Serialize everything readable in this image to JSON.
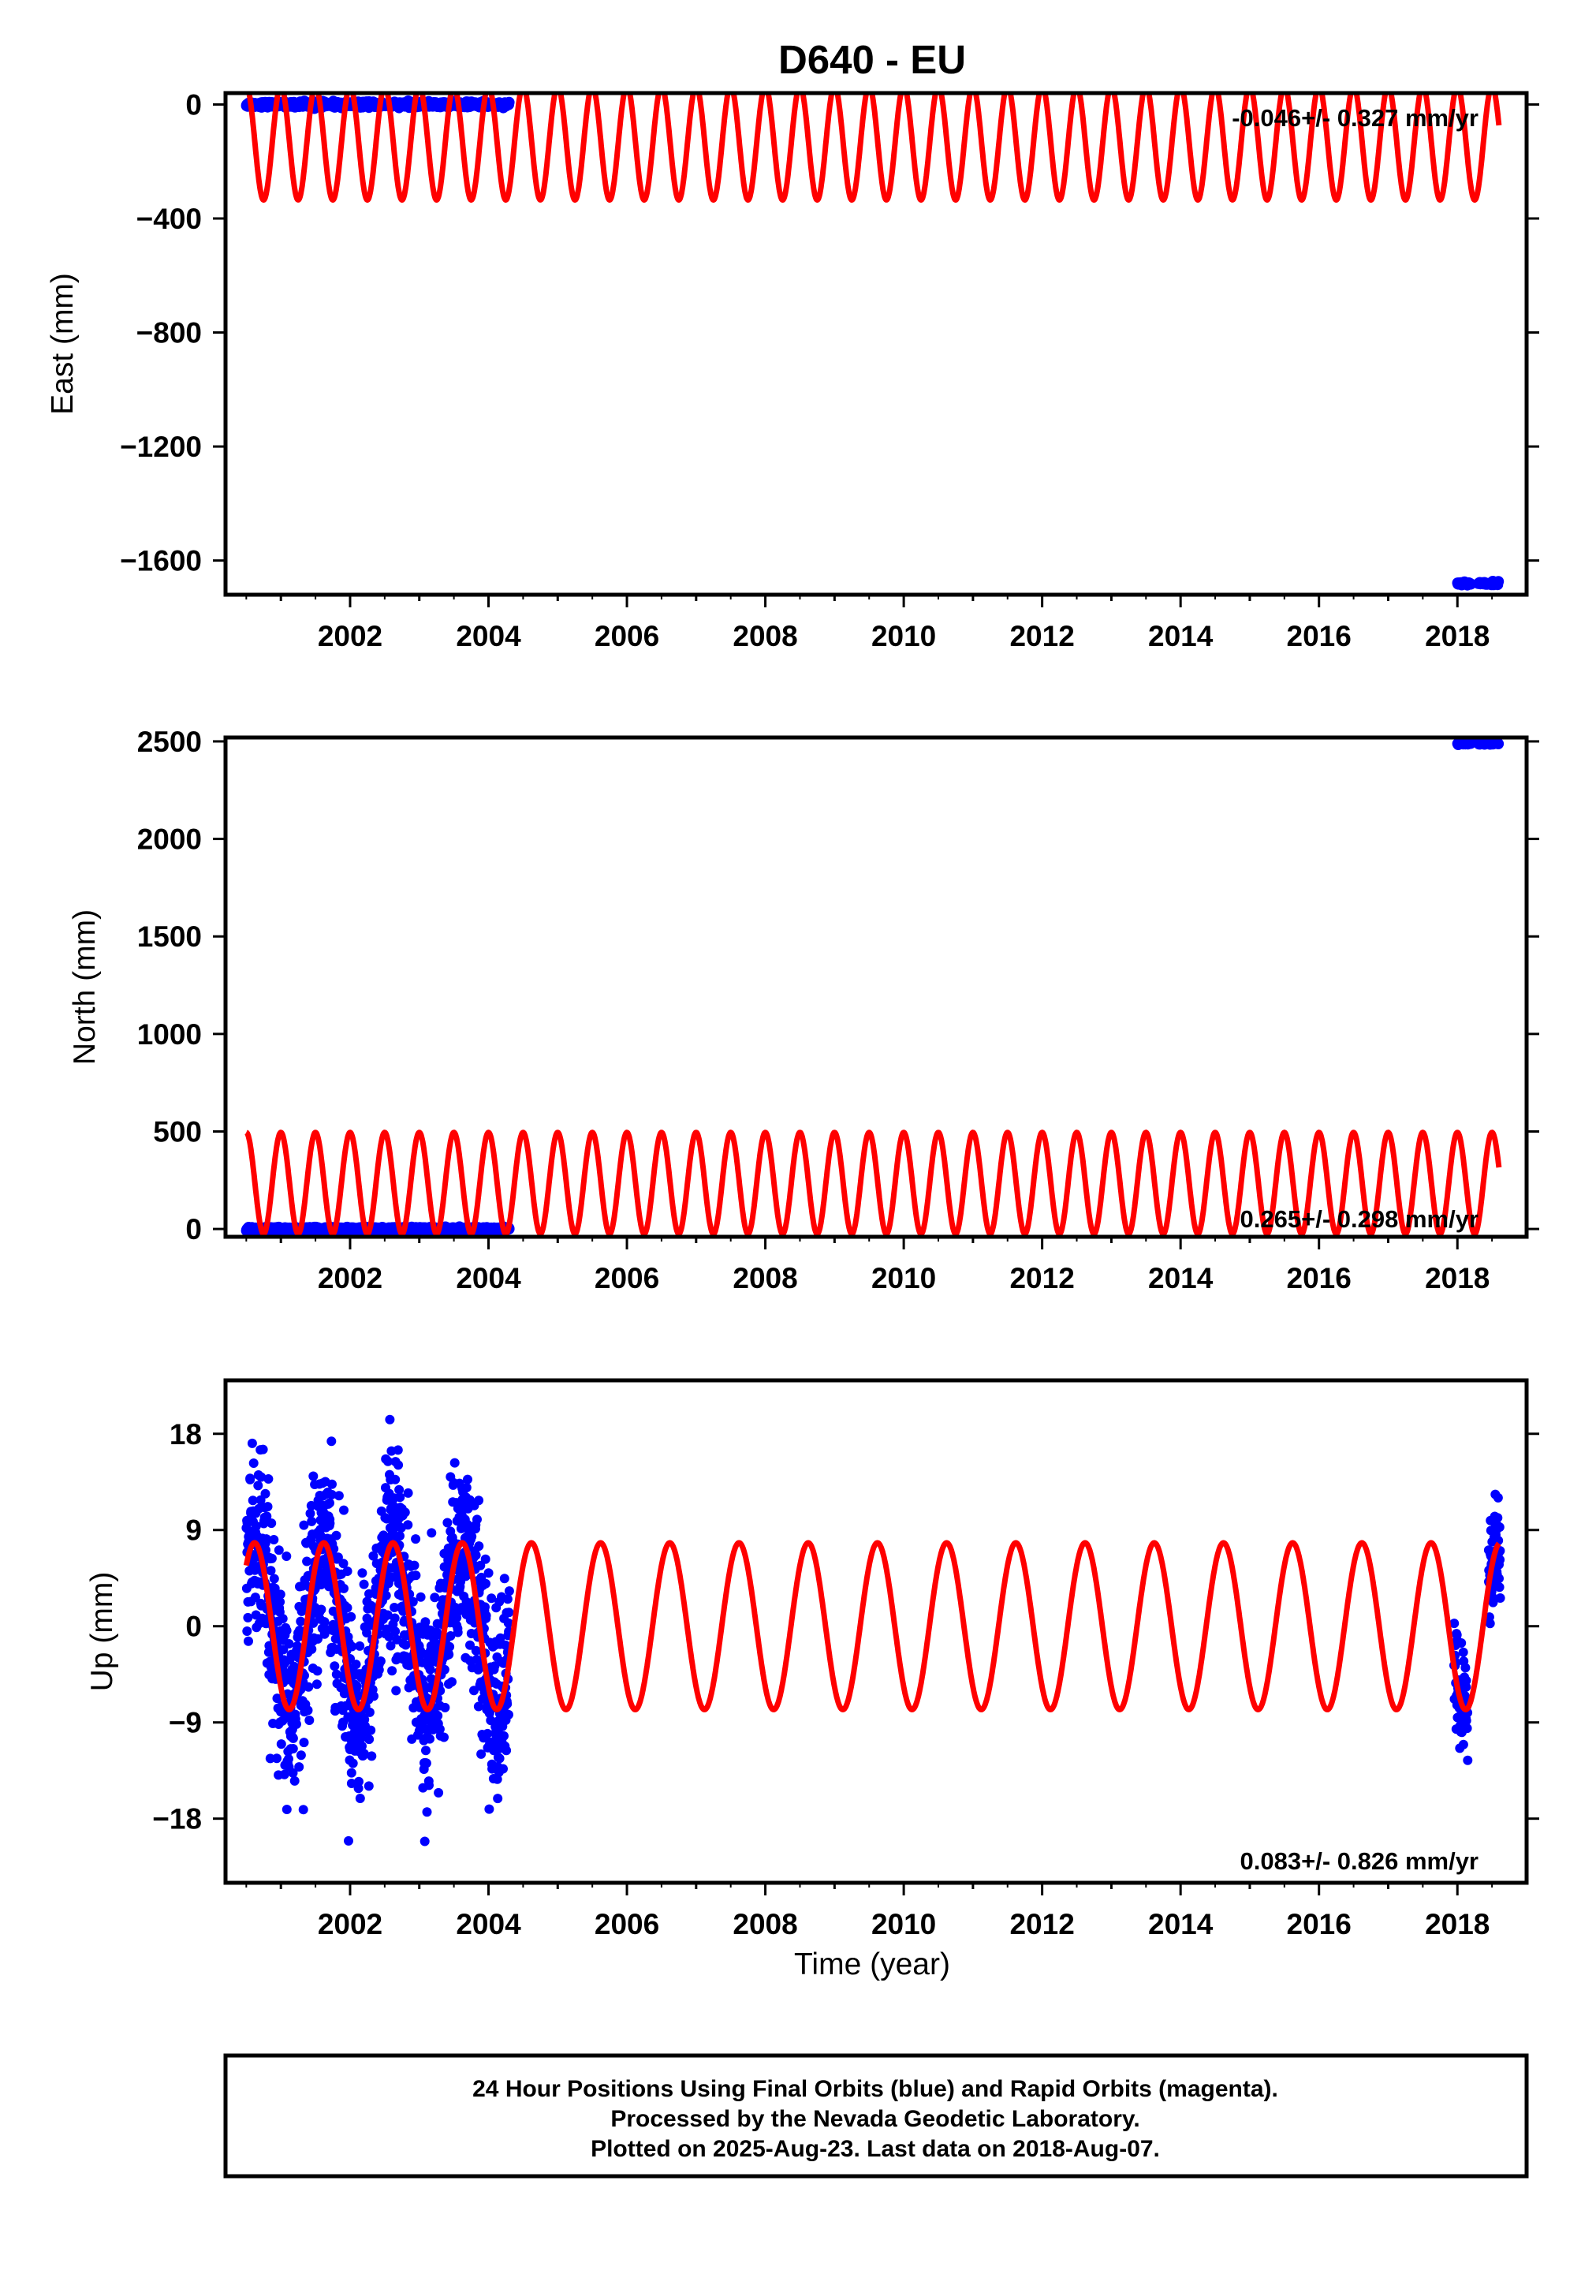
{
  "title": "D640 - EU",
  "xlabel": "Time (year)",
  "footer": {
    "line1": "24 Hour Positions Using Final Orbits (blue) and Rapid Orbits (magenta).",
    "line2": "Processed by the Nevada Geodetic Laboratory.",
    "line3": "Plotted on 2025-Aug-23. Last data on 2018-Aug-07."
  },
  "colors": {
    "final_orbits": "#0000ff",
    "model": "#ff0000",
    "frame": "#000000"
  },
  "chart_data": [
    {
      "type": "scatter",
      "ylabel": "East (mm)",
      "rate_text": "-0.046+/- 0.327 mm/yr",
      "xlim": [
        2000.2,
        2019.0
      ],
      "ylim": [
        -1720,
        40
      ],
      "x_ticks": [
        2002,
        2004,
        2006,
        2008,
        2010,
        2012,
        2014,
        2016,
        2018
      ],
      "y_ticks": [
        0,
        -400,
        -800,
        -1200,
        -1600
      ],
      "y_tick_labels": [
        "0",
        "−400",
        "−800",
        "−1200",
        "−1600"
      ],
      "series": [
        {
          "segments": [
            {
              "x0": 2000.5,
              "x1": 2004.3,
              "center": 0,
              "noise": 4,
              "n": 900
            },
            {
              "x0": 2018.0,
              "x1": 2018.2,
              "center": -1680,
              "noise": 3,
              "n": 20
            },
            {
              "x0": 2018.3,
              "x1": 2018.6,
              "center": -1680,
              "noise": 3,
              "n": 30
            }
          ]
        },
        {
          "x_range": [
            2000.5,
            2018.6
          ],
          "offset": -135,
          "amplitude": 200,
          "phase": 0.5,
          "period": 0.5
        }
      ]
    },
    {
      "type": "scatter",
      "ylabel": "North (mm)",
      "rate_text": "0.265+/- 0.298 mm/yr",
      "xlim": [
        2000.2,
        2019.0
      ],
      "ylim": [
        -40,
        2520
      ],
      "x_ticks": [
        2002,
        2004,
        2006,
        2008,
        2010,
        2012,
        2014,
        2016,
        2018
      ],
      "y_ticks": [
        0,
        500,
        1000,
        1500,
        2000,
        2500
      ],
      "y_tick_labels": [
        "0",
        "500",
        "1000",
        "1500",
        "2000",
        "2500"
      ],
      "series": [
        {
          "segments": [
            {
              "x0": 2000.5,
              "x1": 2004.3,
              "center": 0,
              "noise": 4,
              "n": 900
            },
            {
              "x0": 2018.0,
              "x1": 2018.2,
              "center": 2490,
              "noise": 3,
              "n": 20
            },
            {
              "x0": 2018.3,
              "x1": 2018.6,
              "center": 2490,
              "noise": 3,
              "n": 30
            }
          ]
        },
        {
          "x_range": [
            2000.5,
            2018.6
          ],
          "offset": 235,
          "amplitude": 260,
          "phase": 0,
          "period": 0.5
        }
      ]
    },
    {
      "type": "scatter",
      "ylabel": "Up (mm)",
      "rate_text": "0.083+/- 0.826 mm/yr",
      "xlim": [
        2000.2,
        2019.0
      ],
      "ylim": [
        -24,
        23
      ],
      "x_ticks": [
        2002,
        2004,
        2006,
        2008,
        2010,
        2012,
        2014,
        2016,
        2018
      ],
      "y_ticks": [
        18,
        9,
        0,
        -9,
        -18
      ],
      "y_tick_labels": [
        "18",
        "9",
        "0",
        "−9",
        "−18"
      ],
      "series": [
        {
          "segments": [
            {
              "x0": 2000.5,
              "x1": 2004.3,
              "seasonal": true,
              "noise": 4.5,
              "n": 1300
            },
            {
              "x0": 2017.95,
              "x1": 2018.15,
              "seasonal": true,
              "noise": 2.5,
              "n": 60
            },
            {
              "x0": 2018.45,
              "x1": 2018.62,
              "seasonal": true,
              "noise": 3,
              "n": 60
            }
          ]
        },
        {
          "x_range": [
            2000.5,
            2018.6
          ],
          "offset": 0,
          "amplitude": 7.8,
          "phase": 0.62,
          "period": 1.0
        }
      ]
    }
  ]
}
